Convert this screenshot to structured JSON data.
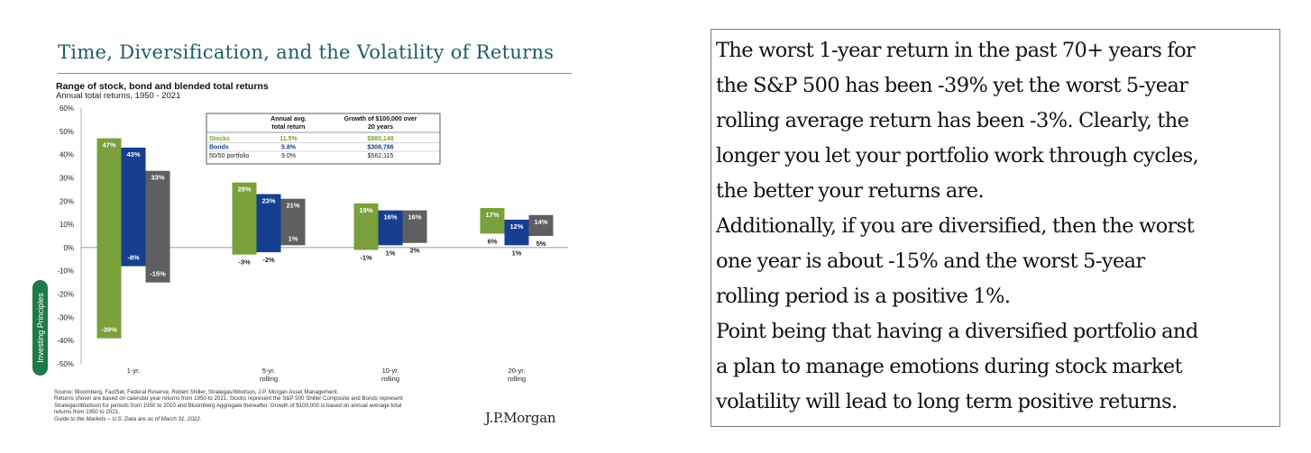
{
  "title": "Time, Diversification, and the Volatility of Returns",
  "subtitle": "Range of stock, bond and blended total returns",
  "subsubtitle": "Annual total returns, 1950 - 2021",
  "sidebar_label": "Investing Principles",
  "colors": {
    "stocks": "#79a03a",
    "bonds": "#163f8f",
    "blend": "#5e5f61",
    "title": "#1e5b66",
    "sidebar": "#1f7a48"
  },
  "legend_table": {
    "headers": [
      "",
      "Annual avg. total return",
      "Growth of $100,000 over 20 years"
    ],
    "rows": [
      {
        "name": "Stocks",
        "avg": "11.5%",
        "growth": "$880,148"
      },
      {
        "name": "Bonds",
        "avg": "5.8%",
        "growth": "$308,786"
      },
      {
        "name": "50/50 portfolio",
        "avg": "9.0%",
        "growth": "$562,115"
      }
    ]
  },
  "chart_data": {
    "type": "bar",
    "subtype": "floating-range",
    "title": "Range of stock, bond and blended total returns",
    "subtitle": "Annual total returns, 1950 - 2021",
    "categories": [
      "1-yr.",
      "5-yr. rolling",
      "10-yr. rolling",
      "20-yr. rolling"
    ],
    "ylim": [
      -50,
      60
    ],
    "yticks": [
      -50,
      -40,
      -30,
      -20,
      -10,
      0,
      10,
      20,
      30,
      40,
      50,
      60
    ],
    "ytick_format": "{v}%",
    "series": [
      {
        "name": "Stocks",
        "max": [
          47,
          28,
          19,
          17
        ],
        "min": [
          -39,
          -3,
          -1,
          6
        ]
      },
      {
        "name": "Bonds",
        "max": [
          43,
          23,
          16,
          12
        ],
        "min": [
          -8,
          -2,
          1,
          1
        ]
      },
      {
        "name": "50/50 portfolio",
        "max": [
          33,
          21,
          16,
          14
        ],
        "min": [
          -15,
          1,
          2,
          5
        ]
      }
    ]
  },
  "footnote": {
    "line1": "Source: Bloomberg, FactSet, Federal Reserve, Robert Shiller, Strategas/Ibbotson, J.P. Morgan Asset Management.",
    "line2": "Returns shown are based on calendar year returns from 1950 to 2021. Stocks represent the S&P 500 Shiller Composite and Bonds represent",
    "line3": "Strategas/Ibbotson for periods from 1950 to 2010 and Bloomberg Aggregate thereafter. Growth of $100,000 is based on annual average total",
    "line4": "returns from 1950 to 2021.",
    "line5": "Guide to the Markets – U.S. Data are as of March 31, 2022."
  },
  "logo": "J.P.Morgan",
  "commentary": {
    "lines": [
      "The worst 1-year return in the past 70+ years for",
      "the S&P 500 has been -39% yet the worst 5-year",
      "rolling average return has been -3%. Clearly, the",
      "longer you let your portfolio work through cycles,",
      "the better your returns are.",
      "Additionally, if you are diversified, then the worst",
      "one year is about -15% and the worst 5-year",
      "rolling period is a positive 1%.",
      "Point being that having a diversified portfolio and",
      "a plan to manage emotions during stock market",
      "volatility will lead to long term positive returns."
    ]
  }
}
